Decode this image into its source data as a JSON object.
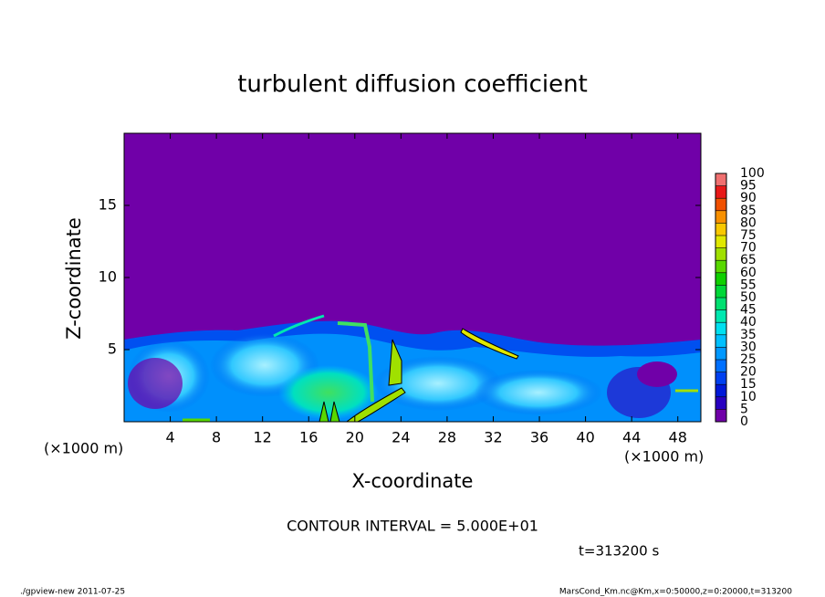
{
  "chart_data": {
    "type": "contour",
    "title": "turbulent diffusion coefficient",
    "xlabel": "X-coordinate",
    "ylabel": "Z-coordinate",
    "x_unit_left": "(×1000 m)",
    "x_unit_right": "(×1000 m)",
    "xlim": [
      0,
      50
    ],
    "ylim": [
      0,
      20
    ],
    "xticks": [
      4,
      8,
      12,
      16,
      20,
      24,
      28,
      32,
      36,
      40,
      44,
      48
    ],
    "yticks": [
      5,
      10,
      15
    ],
    "colorbar": {
      "levels": [
        0,
        5,
        10,
        15,
        20,
        25,
        30,
        35,
        40,
        45,
        50,
        55,
        60,
        65,
        70,
        75,
        80,
        85,
        90,
        95,
        100
      ],
      "colors": [
        "#7000a8",
        "#2800c0",
        "#0018d8",
        "#0040f0",
        "#0070ff",
        "#0098ff",
        "#00c0ff",
        "#00e0f0",
        "#00e8b0",
        "#00e070",
        "#00d838",
        "#10d000",
        "#58d800",
        "#a0e000",
        "#e0e800",
        "#f8c800",
        "#f89000",
        "#f05000",
        "#e81818",
        "#f07070"
      ]
    },
    "annotation": "CONTOUR INTERVAL = 5.000E+01",
    "time_label": "t=313200 s",
    "footer_left": "./gpview-new   2011-07-25",
    "footer_right": "MarsCond_Km.nc@Km,x=0:50000,z=0:20000,t=313200"
  }
}
